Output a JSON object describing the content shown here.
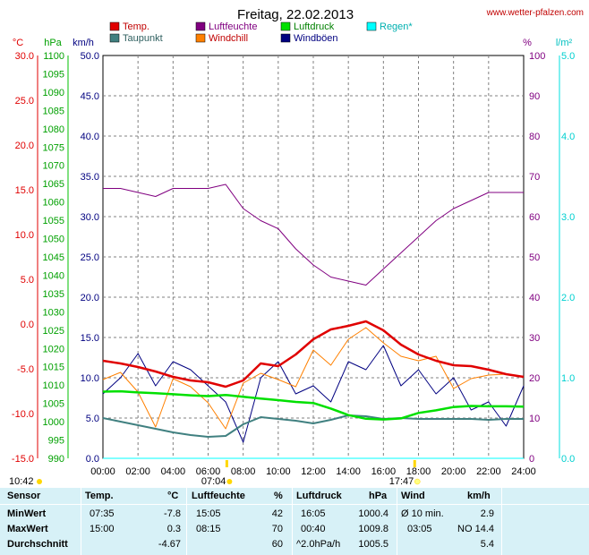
{
  "header": {
    "title": "Freitag, 22.02.2013",
    "site": "www.wetter-pfalzen.com"
  },
  "legend": [
    {
      "label": "Temp.",
      "color": "#e00000"
    },
    {
      "label": "Luftfeuchte",
      "color": "#800080"
    },
    {
      "label": "Luftdruck",
      "color": "#00e000"
    },
    {
      "label": "Regen*",
      "color": "#00ffff"
    },
    {
      "label": "Taupunkt",
      "color": "#408080"
    },
    {
      "label": "Windchill",
      "color": "#ff8000"
    },
    {
      "label": "Windböen",
      "color": "#000080"
    }
  ],
  "axes": {
    "temp_unit": "°C",
    "hpa_unit": "hPa",
    "kmh_unit": "km/h",
    "pct_unit": "%",
    "rain_unit": "l/m²",
    "temp_ticks": [
      "30.0",
      "25.0",
      "20.0",
      "15.0",
      "10.0",
      "5.0",
      "0.0",
      "-5.0",
      "-10.0",
      "-15.0"
    ],
    "hpa_ticks": [
      "1100",
      "1095",
      "1090",
      "1085",
      "1080",
      "1075",
      "1070",
      "1065",
      "1060",
      "1055",
      "1050",
      "1045",
      "1040",
      "1035",
      "1030",
      "1025",
      "1020",
      "1015",
      "1010",
      "1005",
      "1000",
      "995",
      "990"
    ],
    "kmh_ticks": [
      "50.0",
      "45.0",
      "40.0",
      "35.0",
      "30.0",
      "25.0",
      "20.0",
      "15.0",
      "10.0",
      "5.0",
      "0.0"
    ],
    "pct_ticks": [
      "100",
      "90",
      "80",
      "70",
      "60",
      "50",
      "40",
      "30",
      "20",
      "10",
      "0"
    ],
    "rain_ticks": [
      "5.0",
      "4.0",
      "3.0",
      "2.0",
      "1.0",
      "0.0"
    ],
    "time_ticks": [
      "00:00",
      "02:00",
      "04:00",
      "06:00",
      "08:00",
      "10:00",
      "12:00",
      "14:00",
      "16:00",
      "18:00",
      "20:00",
      "22:00",
      "24:00"
    ]
  },
  "sun": {
    "sunrise": "07:04",
    "sunset": "17:47",
    "daylength": "10:42"
  },
  "chart_data": {
    "type": "line",
    "x_unit": "hours",
    "xlim": [
      0,
      24
    ],
    "x": [
      0,
      1,
      2,
      3,
      4,
      5,
      6,
      7,
      8,
      9,
      10,
      11,
      12,
      13,
      14,
      15,
      16,
      17,
      18,
      19,
      20,
      21,
      22,
      23,
      24
    ],
    "series": [
      {
        "name": "Temp.",
        "axis": "°C",
        "ylim": [
          -15,
          30
        ],
        "values": [
          -4.1,
          -4.4,
          -4.8,
          -5.3,
          -5.9,
          -6.3,
          -6.5,
          -7.0,
          -6.3,
          -4.4,
          -4.7,
          -3.4,
          -1.7,
          -0.6,
          -0.2,
          0.3,
          -0.7,
          -2.3,
          -3.4,
          -4.1,
          -4.6,
          -4.7,
          -5.1,
          -5.6,
          -5.9
        ]
      },
      {
        "name": "Windchill",
        "axis": "°C",
        "ylim": [
          -15,
          30
        ],
        "values": [
          -6.2,
          -5.4,
          -7.6,
          -11.5,
          -6.1,
          -7.0,
          -8.8,
          -11.7,
          -6.6,
          -5.5,
          -6.2,
          -7.0,
          -2.9,
          -4.6,
          -1.7,
          -0.4,
          -2.1,
          -3.6,
          -4.1,
          -3.6,
          -7.2,
          -6.1,
          -5.7,
          -5.6,
          -5.9
        ]
      },
      {
        "name": "Taupunkt",
        "axis": "°C",
        "ylim": [
          -15,
          30
        ],
        "values": [
          -10.5,
          -10.9,
          -11.3,
          -11.7,
          -12.1,
          -12.4,
          -12.6,
          -12.5,
          -11.2,
          -10.4,
          -10.6,
          -10.8,
          -11.1,
          -10.7,
          -10.2,
          -10.3,
          -10.6,
          -10.5,
          -10.6,
          -10.6,
          -10.6,
          -10.6,
          -10.7,
          -10.6,
          -10.6
        ]
      },
      {
        "name": "Luftfeuchte",
        "axis": "%",
        "ylim": [
          0,
          100
        ],
        "values": [
          67,
          67,
          66,
          65,
          67,
          67,
          67,
          68,
          62,
          59,
          57,
          52,
          48,
          45,
          44,
          43,
          47,
          51,
          55,
          59,
          62,
          64,
          66,
          66,
          66
        ]
      },
      {
        "name": "Luftdruck",
        "axis": "hPa",
        "ylim": [
          990,
          1100
        ],
        "values": [
          1008.2,
          1008.3,
          1008.0,
          1007.8,
          1007.5,
          1007.2,
          1007.0,
          1007.3,
          1006.8,
          1006.3,
          1005.9,
          1005.4,
          1005.1,
          1003.6,
          1001.8,
          1000.8,
          1000.6,
          1000.9,
          1002.4,
          1003.1,
          1004.0,
          1004.3,
          1004.2,
          1004.2,
          1004.1
        ]
      },
      {
        "name": "Windböen",
        "axis": "km/h",
        "ylim": [
          0,
          50
        ],
        "values": [
          8,
          10,
          13,
          9,
          12,
          11,
          9,
          7,
          2,
          10,
          12,
          8,
          9,
          7,
          12,
          11,
          14,
          9,
          11,
          8,
          10,
          6,
          7,
          4,
          9
        ]
      },
      {
        "name": "Regen*",
        "axis": "l/m²",
        "ylim": [
          0,
          5
        ],
        "values": [
          0,
          0,
          0,
          0,
          0,
          0,
          0,
          0,
          0,
          0,
          0,
          0,
          0,
          0,
          0,
          0,
          0,
          0,
          0,
          0,
          0,
          0,
          0,
          0,
          0
        ]
      }
    ],
    "grid": true
  },
  "stats": {
    "headers": [
      "Sensor",
      "Temp.",
      "°C",
      "Luftfeuchte",
      "%",
      "Luftdruck",
      "hPa",
      "Wind",
      "km/h"
    ],
    "rows": [
      {
        "label": "MinWert",
        "t_time": "07:35",
        "t_val": "-7.8",
        "h_time": "15:05",
        "h_val": "42",
        "p_time": "16:05",
        "p_val": "1000.4",
        "w_time": "Ø 10 min.",
        "w_val": "2.9"
      },
      {
        "label": "MaxWert",
        "t_time": "15:00",
        "t_val": "0.3",
        "h_time": "08:15",
        "h_val": "70",
        "p_time": "00:40",
        "p_val": "1009.8",
        "w_time": "03:05",
        "w_val": "NO 14.4"
      },
      {
        "label": "Durchschnitt",
        "t_time": "",
        "t_val": "-4.67",
        "h_time": "",
        "h_val": "60",
        "p_time": "^2.0hPa/h",
        "p_val": "1005.5",
        "w_time": "",
        "w_val": "5.4"
      }
    ]
  }
}
